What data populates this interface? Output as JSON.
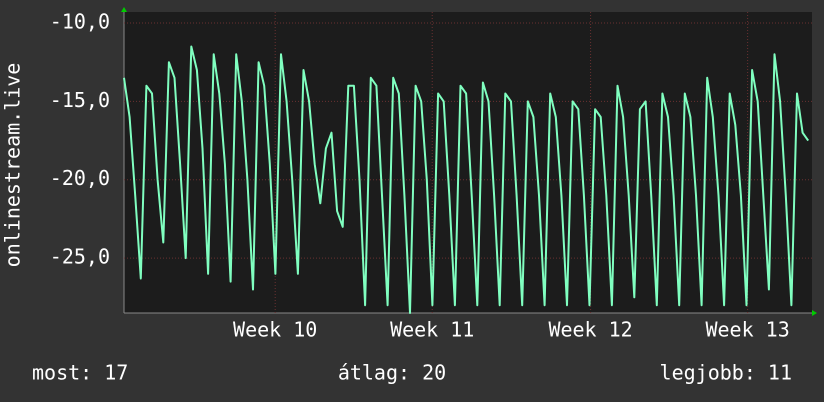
{
  "chart_data": {
    "type": "line",
    "y_label": "onlinestream.live",
    "x": [
      0,
      0.25,
      0.5,
      0.75,
      1,
      1.25,
      1.5,
      1.75,
      2,
      2.25,
      2.5,
      2.75,
      3,
      3.25,
      3.5,
      3.75,
      4,
      4.25,
      4.5,
      4.75,
      5,
      5.25,
      5.5,
      5.75,
      6,
      6.25,
      6.5,
      6.75,
      7,
      7.25,
      7.5,
      7.75,
      8,
      8.25,
      8.5,
      8.75,
      9,
      9.25,
      9.5,
      9.75,
      10,
      10.25,
      10.5,
      10.75,
      11,
      11.25,
      11.5,
      11.75,
      12,
      12.25,
      12.5,
      12.75,
      13,
      13.25,
      13.5,
      13.75,
      14,
      14.25,
      14.5,
      14.75,
      15,
      15.25,
      15.5,
      15.75,
      16,
      16.25,
      16.5,
      16.75,
      17,
      17.25,
      17.5,
      17.75,
      18,
      18.25,
      18.5,
      18.75,
      19,
      19.25,
      19.5,
      19.75,
      20,
      20.25,
      20.5,
      20.75,
      21,
      21.25,
      21.5,
      21.75,
      22,
      22.25,
      22.5,
      22.75,
      23,
      23.25,
      23.5,
      23.75,
      24,
      24.25,
      24.5,
      24.75,
      25,
      25.25,
      25.5,
      25.75,
      26,
      26.25,
      26.5,
      26.75,
      27,
      27.25,
      27.5,
      27.75,
      28,
      28.25,
      28.5,
      28.75,
      29,
      29.25,
      29.5,
      29.75,
      30,
      30.25,
      30.5
    ],
    "series": [
      {
        "name": "onlinestream.live",
        "color": "#80ffc0",
        "values": [
          -13.5,
          -16,
          -21,
          -26.3,
          -14,
          -14.5,
          -20,
          -24,
          -12.5,
          -13.5,
          -19,
          -25,
          -11.5,
          -13,
          -18,
          -26,
          -12,
          -14.5,
          -19,
          -26.5,
          -12,
          -15,
          -20,
          -27,
          -12.5,
          -14,
          -19,
          -26,
          -12,
          -15,
          -20,
          -26,
          -13,
          -15,
          -19,
          -21.5,
          -18,
          -17,
          -22,
          -23,
          -14,
          -14,
          -20,
          -28,
          -13.5,
          -14,
          -21,
          -28,
          -13.5,
          -14.5,
          -21,
          -28.5,
          -14,
          -15,
          -20,
          -28,
          -14.5,
          -15,
          -21,
          -28,
          -14,
          -14.5,
          -21,
          -28,
          -13.8,
          -15,
          -21,
          -28,
          -14.5,
          -15,
          -21,
          -28,
          -15,
          -16,
          -21,
          -28,
          -14.5,
          -16,
          -21,
          -28,
          -15,
          -15.5,
          -21,
          -28,
          -15.5,
          -16,
          -21,
          -28,
          -14,
          -16,
          -21,
          -27.5,
          -15.5,
          -15,
          -21,
          -28,
          -14.5,
          -16,
          -21,
          -28,
          -14.5,
          -16,
          -21,
          -28,
          -13.5,
          -16,
          -21,
          -28,
          -14.5,
          -16.5,
          -21,
          -28,
          -13,
          -15,
          -21,
          -27,
          -12,
          -15,
          -21,
          -28,
          -14.5,
          -17,
          -17.5
        ]
      }
    ],
    "xlim": [
      0,
      30.67
    ],
    "xticks": [
      {
        "value": 6.74,
        "label": "Week 10"
      },
      {
        "value": 13.74,
        "label": "Week 11"
      },
      {
        "value": 20.8,
        "label": "Week 12"
      },
      {
        "value": 27.8,
        "label": "Week 13"
      }
    ],
    "ylim": [
      -28.5,
      -9.3
    ],
    "yticks": [
      {
        "value": -10,
        "label": "-10,0"
      },
      {
        "value": -15,
        "label": "-15,0"
      },
      {
        "value": -20,
        "label": "-20,0"
      },
      {
        "value": -25,
        "label": "-25,0"
      }
    ],
    "grid": true,
    "stats": [
      "most: 17",
      "átlag: 20",
      "legjobb: 11"
    ]
  }
}
